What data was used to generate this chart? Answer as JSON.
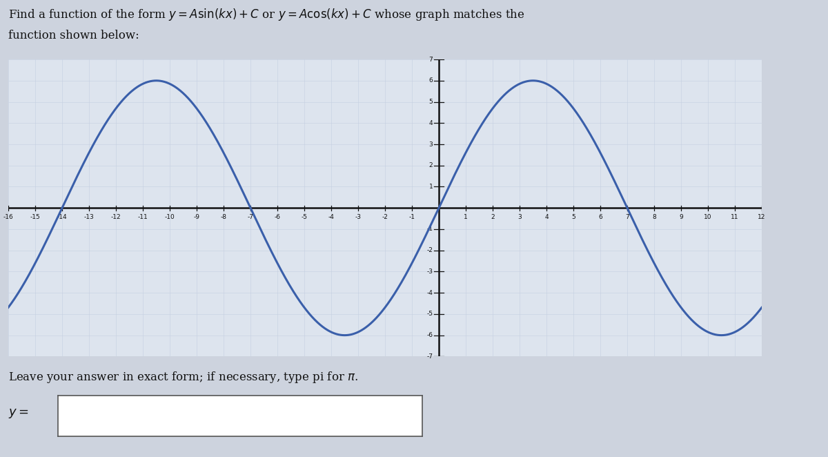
{
  "title_line1": "Find a function of the form $y = A\\sin(kx) + C$ or $y = A\\cos(kx) + C$ whose graph matches the",
  "title_line2": "function shown below:",
  "amplitude": 6,
  "k_num": 1,
  "k_den": 7,
  "C": 0,
  "x_min": -16,
  "x_max": 12,
  "y_min": -7,
  "y_max": 7,
  "curve_color": "#3a5faa",
  "grid_color_light": "#c5cfe0",
  "bg_color": "#dde4ee",
  "axis_color": "#111111",
  "text_color": "#111111",
  "fig_bg": "#cdd3de",
  "bottom_text": "Leave your answer in exact form; if necessary, type pi for ",
  "answer_label": "y = "
}
